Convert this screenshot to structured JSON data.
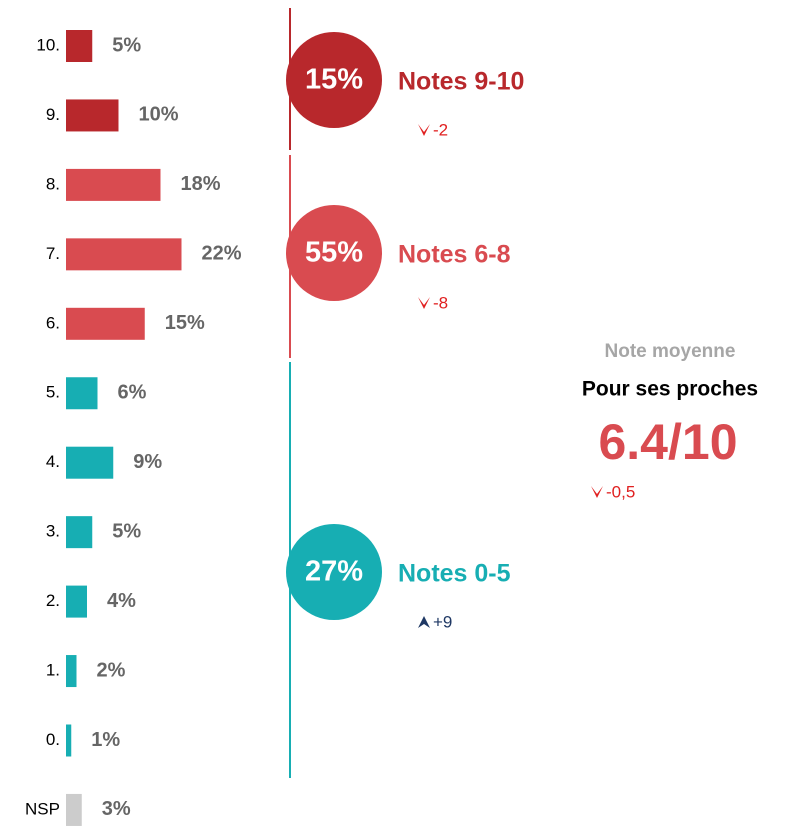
{
  "chart_data": {
    "type": "bar",
    "orientation": "horizontal",
    "categories": [
      "10.",
      "9.",
      "8.",
      "7.",
      "6.",
      "5.",
      "4.",
      "3.",
      "2.",
      "1.",
      "0.",
      "NSP"
    ],
    "values": [
      5,
      10,
      18,
      22,
      15,
      6,
      9,
      5,
      4,
      2,
      1,
      3
    ],
    "value_labels": [
      "5%",
      "10%",
      "18%",
      "22%",
      "15%",
      "6%",
      "9%",
      "5%",
      "4%",
      "2%",
      "1%",
      "3%"
    ],
    "colors": [
      "#b8282c",
      "#b8282c",
      "#d94b50",
      "#d94b50",
      "#d94b50",
      "#17aeb3",
      "#17aeb3",
      "#17aeb3",
      "#17aeb3",
      "#17aeb3",
      "#17aeb3",
      "#cccccc"
    ],
    "groups": [
      {
        "share": "15%",
        "label": "Notes 9-10",
        "change": "-2",
        "direction": "down",
        "color": "#b8282c"
      },
      {
        "share": "55%",
        "label": "Notes 6-8",
        "change": "-8",
        "direction": "down",
        "color": "#d94b50"
      },
      {
        "share": "27%",
        "label": "Notes 0-5",
        "change": "+9",
        "direction": "up",
        "color": "#17aeb3"
      }
    ],
    "summary": {
      "title": "Note moyenne",
      "subtitle": "Pour ses proches",
      "score": "6.4/10",
      "change": "-0,5",
      "direction": "down"
    }
  }
}
